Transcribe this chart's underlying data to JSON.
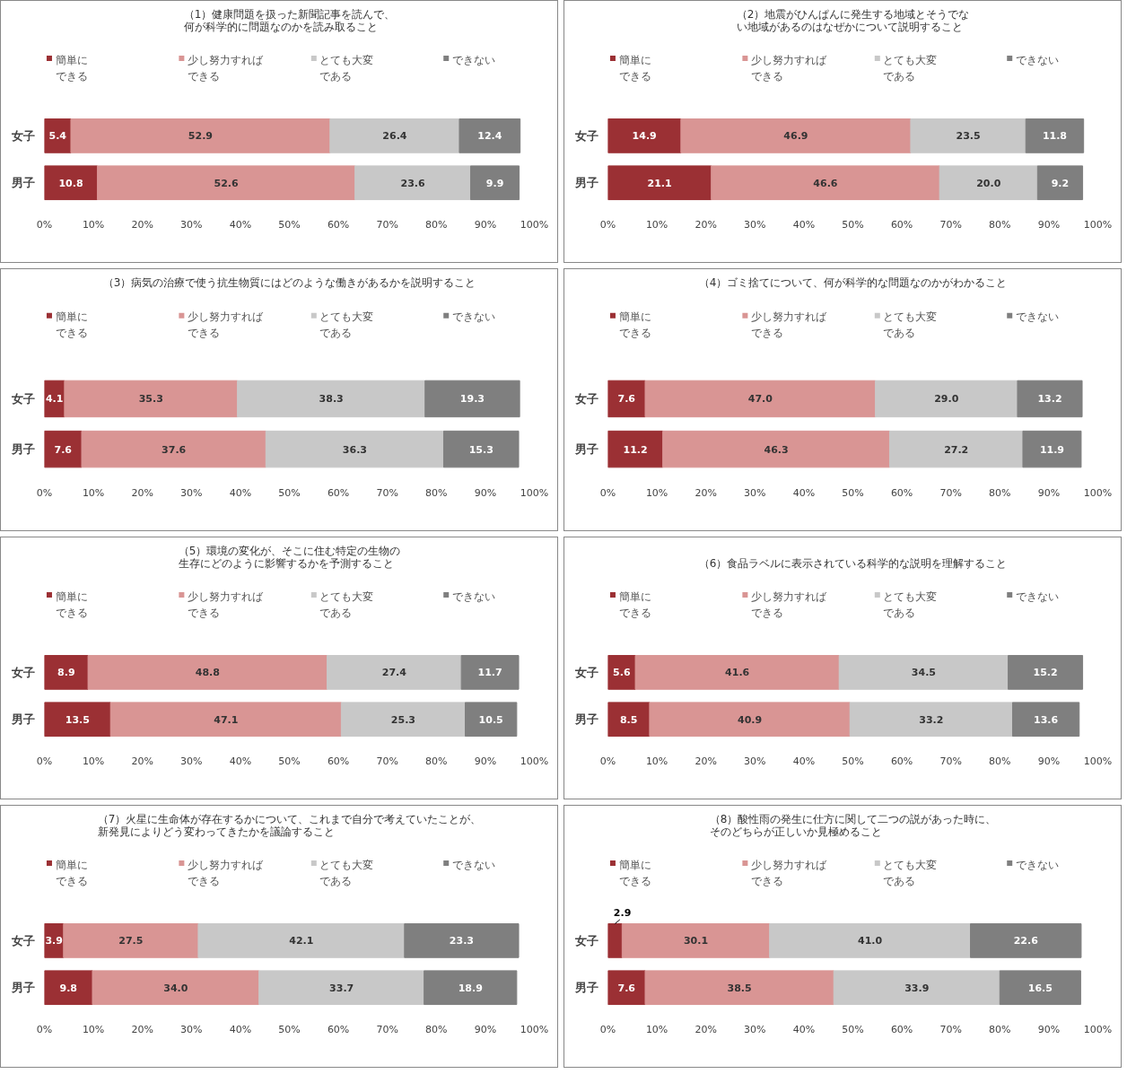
{
  "chart_data": [
    {
      "type": "bar",
      "title": "（1）健康問題を扱った新聞記事を読んで、何が科学的に問題なのかを読み取ること",
      "orientation": "horizontal",
      "stacked": true,
      "categories": [
        "女子",
        "男子"
      ],
      "xlim": [
        0,
        100
      ],
      "xticks": [
        {
          "value": 0,
          "label": "0%"
        },
        {
          "value": 10,
          "label": "10%"
        },
        {
          "value": 20,
          "label": "20%"
        },
        {
          "value": 30,
          "label": "30%"
        },
        {
          "value": 40,
          "label": "40%"
        },
        {
          "value": 50,
          "label": "50%"
        },
        {
          "value": 60,
          "label": "60%"
        },
        {
          "value": 70,
          "label": "70%"
        },
        {
          "value": 80,
          "label": "80%"
        },
        {
          "value": 90,
          "label": "90%"
        },
        {
          "value": 100,
          "label": "100%"
        }
      ],
      "legend": "top",
      "grid": false,
      "series": [
        {
          "name": "簡単にできる",
          "color": "#9b3034",
          "values": [
            5.4,
            10.8
          ],
          "value_labels": [
            "5.4",
            "10.8"
          ]
        },
        {
          "name": "少し努力すればできる",
          "color": "#d99594",
          "values": [
            52.9,
            52.6
          ],
          "value_labels": [
            "52.9",
            "52.6"
          ]
        },
        {
          "name": "とても大変である",
          "color": "#c8c8c8",
          "values": [
            26.4,
            23.6
          ],
          "value_labels": [
            "26.4",
            "23.6"
          ]
        },
        {
          "name": "できない",
          "color": "#7f7f7f",
          "values": [
            12.4,
            9.9
          ],
          "value_labels": [
            "12.4",
            "9.9"
          ]
        }
      ]
    },
    {
      "type": "bar",
      "title": "（2）地震がひんぱんに発生する地域とそうでない地域があるのはなぜかについて説明すること",
      "orientation": "horizontal",
      "stacked": true,
      "categories": [
        "女子",
        "男子"
      ],
      "xlim": [
        0,
        100
      ],
      "xticks": [
        {
          "value": 0,
          "label": "0%"
        },
        {
          "value": 10,
          "label": "10%"
        },
        {
          "value": 20,
          "label": "20%"
        },
        {
          "value": 30,
          "label": "30%"
        },
        {
          "value": 40,
          "label": "40%"
        },
        {
          "value": 50,
          "label": "50%"
        },
        {
          "value": 60,
          "label": "60%"
        },
        {
          "value": 70,
          "label": "70%"
        },
        {
          "value": 80,
          "label": "80%"
        },
        {
          "value": 90,
          "label": "90%"
        },
        {
          "value": 100,
          "label": "100%"
        }
      ],
      "legend": "top",
      "grid": false,
      "series": [
        {
          "name": "簡単にできる",
          "color": "#9b3034",
          "values": [
            14.9,
            21.1
          ],
          "value_labels": [
            "14.9",
            "21.1"
          ]
        },
        {
          "name": "少し努力すればできる",
          "color": "#d99594",
          "values": [
            46.9,
            46.6
          ],
          "value_labels": [
            "46.9",
            "46.6"
          ]
        },
        {
          "name": "とても大変である",
          "color": "#c8c8c8",
          "values": [
            23.5,
            20.0
          ],
          "value_labels": [
            "23.5",
            "20.0"
          ]
        },
        {
          "name": "できない",
          "color": "#7f7f7f",
          "values": [
            11.8,
            9.2
          ],
          "value_labels": [
            "11.8",
            "9.2"
          ]
        }
      ]
    },
    {
      "type": "bar",
      "title": "（3）病気の治療で使う抗生物質にはどのような働きがあるかを説明すること",
      "orientation": "horizontal",
      "stacked": true,
      "categories": [
        "女子",
        "男子"
      ],
      "xlim": [
        0,
        100
      ],
      "xticks": [
        {
          "value": 0,
          "label": "0%"
        },
        {
          "value": 10,
          "label": "10%"
        },
        {
          "value": 20,
          "label": "20%"
        },
        {
          "value": 30,
          "label": "30%"
        },
        {
          "value": 40,
          "label": "40%"
        },
        {
          "value": 50,
          "label": "50%"
        },
        {
          "value": 60,
          "label": "60%"
        },
        {
          "value": 70,
          "label": "70%"
        },
        {
          "value": 80,
          "label": "80%"
        },
        {
          "value": 90,
          "label": "90%"
        },
        {
          "value": 100,
          "label": "100%"
        }
      ],
      "legend": "top",
      "grid": false,
      "series": [
        {
          "name": "簡単にできる",
          "color": "#9b3034",
          "values": [
            4.1,
            7.6
          ],
          "value_labels": [
            "4.1",
            "7.6"
          ]
        },
        {
          "name": "少し努力すればできる",
          "color": "#d99594",
          "values": [
            35.3,
            37.6
          ],
          "value_labels": [
            "35.3",
            "37.6"
          ]
        },
        {
          "name": "とても大変である",
          "color": "#c8c8c8",
          "values": [
            38.3,
            36.3
          ],
          "value_labels": [
            "38.3",
            "36.3"
          ]
        },
        {
          "name": "できない",
          "color": "#7f7f7f",
          "values": [
            19.3,
            15.3
          ],
          "value_labels": [
            "19.3",
            "15.3"
          ]
        }
      ]
    },
    {
      "type": "bar",
      "title": "（4）ゴミ捨てについて、何が科学的な問題なのかがわかること",
      "orientation": "horizontal",
      "stacked": true,
      "categories": [
        "女子",
        "男子"
      ],
      "xlim": [
        0,
        100
      ],
      "xticks": [
        {
          "value": 0,
          "label": "0%"
        },
        {
          "value": 10,
          "label": "10%"
        },
        {
          "value": 20,
          "label": "20%"
        },
        {
          "value": 30,
          "label": "30%"
        },
        {
          "value": 40,
          "label": "40%"
        },
        {
          "value": 50,
          "label": "50%"
        },
        {
          "value": 60,
          "label": "60%"
        },
        {
          "value": 70,
          "label": "70%"
        },
        {
          "value": 80,
          "label": "80%"
        },
        {
          "value": 90,
          "label": "90%"
        },
        {
          "value": 100,
          "label": "100%"
        }
      ],
      "legend": "top",
      "grid": false,
      "series": [
        {
          "name": "簡単にできる",
          "color": "#9b3034",
          "values": [
            7.6,
            11.2
          ],
          "value_labels": [
            "7.6",
            "11.2"
          ]
        },
        {
          "name": "少し努力すればできる",
          "color": "#d99594",
          "values": [
            47.0,
            46.3
          ],
          "value_labels": [
            "47.0",
            "46.3"
          ]
        },
        {
          "name": "とても大変である",
          "color": "#c8c8c8",
          "values": [
            29.0,
            27.2
          ],
          "value_labels": [
            "29.0",
            "27.2"
          ]
        },
        {
          "name": "できない",
          "color": "#7f7f7f",
          "values": [
            13.2,
            11.9
          ],
          "value_labels": [
            "13.2",
            "11.9"
          ]
        }
      ]
    },
    {
      "type": "bar",
      "title": "（5）環境の変化が、そこに住む特定の生物の生存にどのように影響するかを予測すること",
      "orientation": "horizontal",
      "stacked": true,
      "categories": [
        "女子",
        "男子"
      ],
      "xlim": [
        0,
        100
      ],
      "xticks": [
        {
          "value": 0,
          "label": "0%"
        },
        {
          "value": 10,
          "label": "10%"
        },
        {
          "value": 20,
          "label": "20%"
        },
        {
          "value": 30,
          "label": "30%"
        },
        {
          "value": 40,
          "label": "40%"
        },
        {
          "value": 50,
          "label": "50%"
        },
        {
          "value": 60,
          "label": "60%"
        },
        {
          "value": 70,
          "label": "70%"
        },
        {
          "value": 80,
          "label": "80%"
        },
        {
          "value": 90,
          "label": "90%"
        },
        {
          "value": 100,
          "label": "100%"
        }
      ],
      "legend": "top",
      "grid": false,
      "series": [
        {
          "name": "簡単にできる",
          "color": "#9b3034",
          "values": [
            8.9,
            13.5
          ],
          "value_labels": [
            "8.9",
            "13.5"
          ]
        },
        {
          "name": "少し努力すればできる",
          "color": "#d99594",
          "values": [
            48.8,
            47.1
          ],
          "value_labels": [
            "48.8",
            "47.1"
          ]
        },
        {
          "name": "とても大変である",
          "color": "#c8c8c8",
          "values": [
            27.4,
            25.3
          ],
          "value_labels": [
            "27.4",
            "25.3"
          ]
        },
        {
          "name": "できない",
          "color": "#7f7f7f",
          "values": [
            11.7,
            10.5
          ],
          "value_labels": [
            "11.7",
            "10.5"
          ]
        }
      ]
    },
    {
      "type": "bar",
      "title": "（6）食品ラベルに表示されている科学的な説明を理解すること",
      "orientation": "horizontal",
      "stacked": true,
      "categories": [
        "女子",
        "男子"
      ],
      "xlim": [
        0,
        100
      ],
      "xticks": [
        {
          "value": 0,
          "label": "0%"
        },
        {
          "value": 10,
          "label": "10%"
        },
        {
          "value": 20,
          "label": "20%"
        },
        {
          "value": 30,
          "label": "30%"
        },
        {
          "value": 40,
          "label": "40%"
        },
        {
          "value": 50,
          "label": "50%"
        },
        {
          "value": 60,
          "label": "60%"
        },
        {
          "value": 70,
          "label": "70%"
        },
        {
          "value": 80,
          "label": "80%"
        },
        {
          "value": 90,
          "label": "90%"
        },
        {
          "value": 100,
          "label": "100%"
        }
      ],
      "legend": "top",
      "grid": false,
      "series": [
        {
          "name": "簡単にできる",
          "color": "#9b3034",
          "values": [
            5.6,
            8.5
          ],
          "value_labels": [
            "5.6",
            "8.5"
          ]
        },
        {
          "name": "少し努力すればできる",
          "color": "#d99594",
          "values": [
            41.6,
            40.9
          ],
          "value_labels": [
            "41.6",
            "40.9"
          ]
        },
        {
          "name": "とても大変である",
          "color": "#c8c8c8",
          "values": [
            34.5,
            33.2
          ],
          "value_labels": [
            "34.5",
            "33.2"
          ]
        },
        {
          "name": "できない",
          "color": "#7f7f7f",
          "values": [
            15.2,
            13.6
          ],
          "value_labels": [
            "15.2",
            "13.6"
          ]
        }
      ]
    },
    {
      "type": "bar",
      "title": "（7）火星に生命体が存在するかについて、これまで自分で考えていたことが、新発見によりどう変わってきたかを議論すること",
      "orientation": "horizontal",
      "stacked": true,
      "categories": [
        "女子",
        "男子"
      ],
      "xlim": [
        0,
        100
      ],
      "xticks": [
        {
          "value": 0,
          "label": "0%"
        },
        {
          "value": 10,
          "label": "10%"
        },
        {
          "value": 20,
          "label": "20%"
        },
        {
          "value": 30,
          "label": "30%"
        },
        {
          "value": 40,
          "label": "40%"
        },
        {
          "value": 50,
          "label": "50%"
        },
        {
          "value": 60,
          "label": "60%"
        },
        {
          "value": 70,
          "label": "70%"
        },
        {
          "value": 80,
          "label": "80%"
        },
        {
          "value": 90,
          "label": "90%"
        },
        {
          "value": 100,
          "label": "100%"
        }
      ],
      "legend": "top",
      "grid": false,
      "series": [
        {
          "name": "簡単にできる",
          "color": "#9b3034",
          "values": [
            3.9,
            9.8
          ],
          "value_labels": [
            "3.9",
            "9.8"
          ]
        },
        {
          "name": "少し努力すればできる",
          "color": "#d99594",
          "values": [
            27.5,
            34.0
          ],
          "value_labels": [
            "27.5",
            "34.0"
          ]
        },
        {
          "name": "とても大変である",
          "color": "#c8c8c8",
          "values": [
            42.1,
            33.7
          ],
          "value_labels": [
            "42.1",
            "33.7"
          ]
        },
        {
          "name": "できない",
          "color": "#7f7f7f",
          "values": [
            23.3,
            18.9
          ],
          "value_labels": [
            "23.3",
            "18.9"
          ]
        }
      ]
    },
    {
      "type": "bar",
      "title": "（8）酸性雨の発生に仕方に関して二つの説があった時に、そのどちらが正しいか見極めること",
      "orientation": "horizontal",
      "stacked": true,
      "categories": [
        "女子",
        "男子"
      ],
      "xlim": [
        0,
        100
      ],
      "xticks": [
        {
          "value": 0,
          "label": "0%"
        },
        {
          "value": 10,
          "label": "10%"
        },
        {
          "value": 20,
          "label": "20%"
        },
        {
          "value": 30,
          "label": "30%"
        },
        {
          "value": 40,
          "label": "40%"
        },
        {
          "value": 50,
          "label": "50%"
        },
        {
          "value": 60,
          "label": "60%"
        },
        {
          "value": 70,
          "label": "70%"
        },
        {
          "value": 80,
          "label": "80%"
        },
        {
          "value": 90,
          "label": "90%"
        },
        {
          "value": 100,
          "label": "100%"
        }
      ],
      "legend": "top",
      "grid": false,
      "series": [
        {
          "name": "簡単にできる",
          "color": "#9b3034",
          "values": [
            2.9,
            7.6
          ],
          "value_labels": [
            "2.9",
            "7.6"
          ]
        },
        {
          "name": "少し努力すればできる",
          "color": "#d99594",
          "values": [
            30.1,
            38.5
          ],
          "value_labels": [
            "30.1",
            "38.5"
          ]
        },
        {
          "name": "とても大変である",
          "color": "#c8c8c8",
          "values": [
            41.0,
            33.9
          ],
          "value_labels": [
            "41.0",
            "33.9"
          ]
        },
        {
          "name": "できない",
          "color": "#7f7f7f",
          "values": [
            22.6,
            16.5
          ],
          "value_labels": [
            "22.6",
            "16.5"
          ]
        }
      ]
    }
  ]
}
